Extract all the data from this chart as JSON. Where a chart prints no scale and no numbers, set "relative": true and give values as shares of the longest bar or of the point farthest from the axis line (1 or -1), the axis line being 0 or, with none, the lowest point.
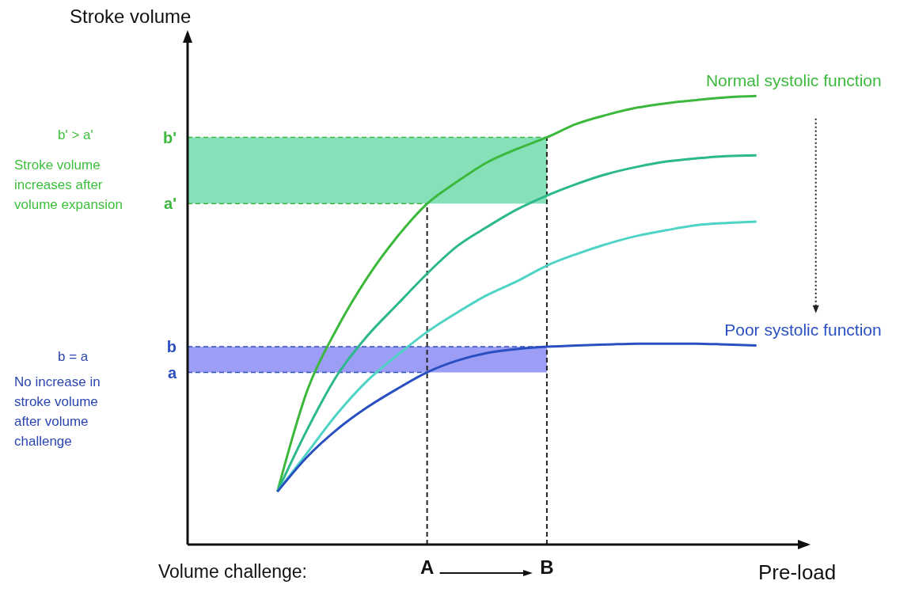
{
  "chart_data": {
    "type": "line",
    "relative": true,
    "xlabel": "Pre-load",
    "categories": [
      null,
      null,
      null,
      null,
      null,
      "A",
      null,
      null,
      null,
      "B",
      null,
      null,
      null,
      null,
      null,
      null,
      null
    ],
    "series": [
      {
        "name": "Normal systolic function",
        "color": "#3cb83c",
        "values": [
          0.118,
          0.344,
          0.483,
          0.595,
          0.686,
          0.76,
          0.809,
          0.852,
          0.882,
          0.908,
          0.938,
          0.958,
          0.974,
          0.984,
          0.991,
          0.997,
          1.0
        ]
      },
      {
        "color": "#2bb88a",
        "values": [
          0.118,
          0.257,
          0.378,
          0.465,
          0.535,
          0.604,
          0.665,
          0.708,
          0.747,
          0.778,
          0.804,
          0.826,
          0.842,
          0.854,
          0.861,
          0.866,
          0.868
        ]
      },
      {
        "color": "#4fd3c4",
        "values": [
          0.118,
          0.205,
          0.292,
          0.365,
          0.422,
          0.474,
          0.517,
          0.556,
          0.587,
          0.622,
          0.648,
          0.67,
          0.688,
          0.701,
          0.712,
          0.717,
          0.72
        ]
      },
      {
        "name": "Poor systolic function",
        "color": "#2a4fc0",
        "values": [
          0.118,
          0.196,
          0.257,
          0.306,
          0.347,
          0.384,
          0.41,
          0.427,
          0.436,
          0.441,
          0.444,
          0.446,
          0.448,
          0.448,
          0.448,
          0.446,
          0.444
        ]
      }
    ],
    "ref_lines": [
      {
        "axis": "y",
        "value": 0.384,
        "label": "a",
        "color": "#2a4fc0",
        "line_style": "dashed"
      },
      {
        "axis": "y",
        "value": 0.441,
        "label": "b",
        "color": "#2a4fc0",
        "line_style": "dashed"
      },
      {
        "axis": "y",
        "value": 0.76,
        "label": "a'",
        "color": "#3cb83c",
        "line_style": "dashed"
      },
      {
        "axis": "y",
        "value": 0.908,
        "label": "b'",
        "color": "#3cb83c",
        "line_style": "dashed"
      },
      {
        "axis": "x",
        "value": "A",
        "color": "#222222",
        "line_style": "dashed"
      },
      {
        "axis": "x",
        "value": "B",
        "color": "#222222",
        "line_style": "dashed"
      }
    ],
    "bands": [
      {
        "axis": "y",
        "from": 0.384,
        "to": 0.441,
        "color": "#7b7cf0"
      },
      {
        "axis": "y",
        "from": 0.76,
        "to": 0.908,
        "color": "#5ed6a0"
      }
    ],
    "annotations": [
      "b' > a'",
      "Stroke volume increases after volume expansion",
      "b = a",
      "No increase in stroke volume after volume challenge",
      "Volume challenge:",
      "Stroke volume"
    ],
    "marker": "none",
    "line_style": "solid"
  }
}
